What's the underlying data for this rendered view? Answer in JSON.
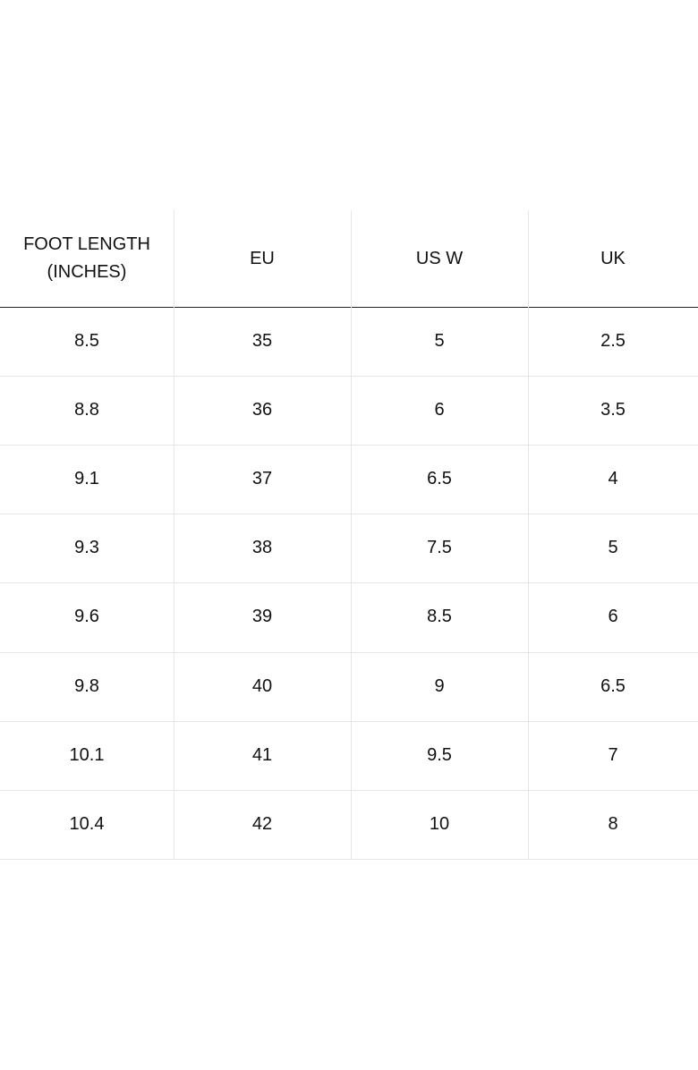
{
  "table": {
    "headers": [
      "FOOT LENGTH (INCHES)",
      "EU",
      "US W",
      "UK"
    ],
    "rows": [
      [
        8.5,
        35,
        5,
        2.5
      ],
      [
        8.8,
        36,
        6,
        3.5
      ],
      [
        9.1,
        37,
        6.5,
        4
      ],
      [
        9.3,
        38,
        7.5,
        5
      ],
      [
        9.6,
        39,
        8.5,
        6
      ],
      [
        9.8,
        40,
        9,
        6.5
      ],
      [
        10.1,
        41,
        9.5,
        7
      ],
      [
        10.4,
        42,
        10,
        8
      ]
    ]
  }
}
